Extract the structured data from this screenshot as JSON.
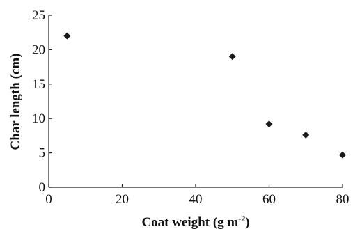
{
  "chart_data": {
    "type": "scatter",
    "x": [
      5,
      50,
      60,
      70,
      80
    ],
    "y": [
      22,
      19,
      9.2,
      7.6,
      4.7
    ],
    "xlim": [
      0,
      80
    ],
    "ylim": [
      0,
      25
    ],
    "xticks": [
      "0",
      "20",
      "40",
      "60",
      "80"
    ],
    "yticks": [
      "0",
      "5",
      "10",
      "15",
      "20",
      "25"
    ],
    "xlabel": "Coat weight (g m",
    "xlabel_sup": "-2",
    "xlabel_end": ")",
    "ylabel": "Char length (cm)",
    "marker": "diamond",
    "marker_color": "#1a1a1a",
    "grid": false
  }
}
